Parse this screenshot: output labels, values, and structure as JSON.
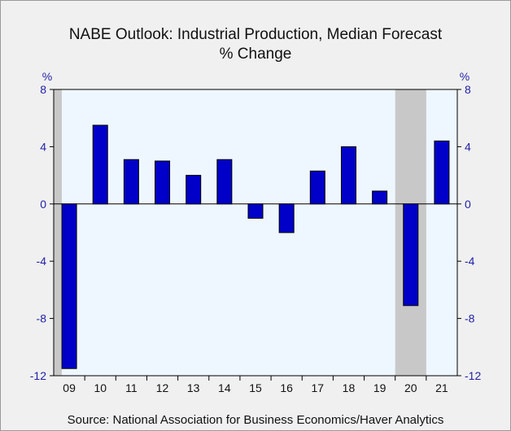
{
  "page": {
    "title": "NABE Outlook: Industrial Production, Median Forecast",
    "subtitle": "% Change",
    "source": "Source:  National Association for Business Economics/Haver Analytics"
  },
  "chart_data": {
    "type": "bar",
    "categories": [
      "09",
      "10",
      "11",
      "12",
      "13",
      "14",
      "15",
      "16",
      "17",
      "18",
      "19",
      "20",
      "21"
    ],
    "values": [
      -11.5,
      5.5,
      3.1,
      3.0,
      2.0,
      3.1,
      -1.0,
      -2.0,
      2.3,
      4.0,
      0.9,
      -7.1,
      4.4
    ],
    "ylabel_left": "%",
    "ylabel_right": "%",
    "ylim": [
      -12,
      8
    ],
    "yticks": [
      8,
      4,
      0,
      -4,
      -8,
      -12
    ],
    "shaded_periods": [
      "09",
      "20"
    ],
    "colors": {
      "bar": "#0000c8",
      "plot_bg": "#eef6ff",
      "shade": "#c8c8c8",
      "axis_text": "#1f1fa8"
    }
  }
}
